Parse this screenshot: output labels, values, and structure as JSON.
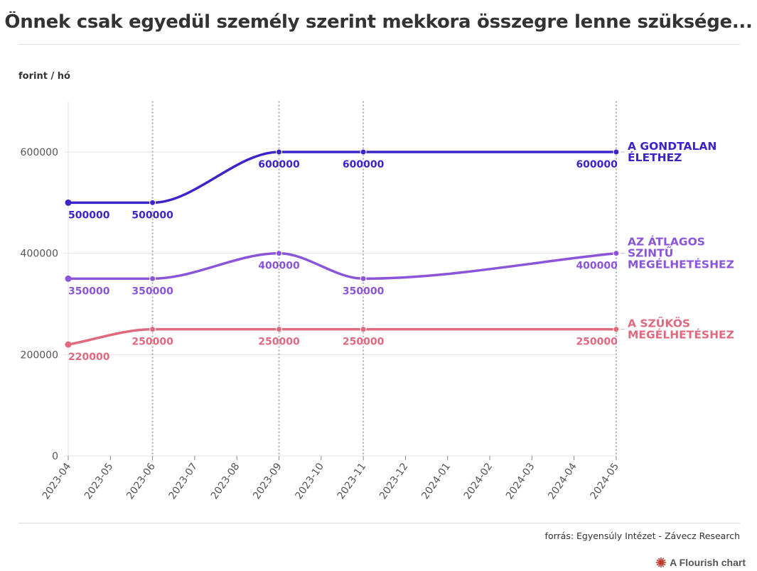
{
  "header": {
    "title": "Önnek csak egyedül személy szerint mekkora összegre lenne szüksége..."
  },
  "footer": {
    "source": "forrás: Egyensúly Intézet - Závecz Research",
    "credit": "A Flourish chart"
  },
  "colors": {
    "gondtalan": "#3b25c9",
    "atlagos": "#8a55d8",
    "szukos": "#e0697f",
    "grid": "#e4e4e4",
    "vline": "#aaaaaa",
    "axis": "#555555",
    "flourish_logo": "#c0392b"
  },
  "icons": {
    "flourish_logo": "flourish-burst-icon"
  },
  "chart_data": {
    "type": "line",
    "ylabel": "forint / hó",
    "xlabel": "",
    "ylim": [
      0,
      700000
    ],
    "yticks": [
      0,
      200000,
      400000,
      600000
    ],
    "ytick_labels": [
      "0",
      "200000",
      "400000",
      "600000"
    ],
    "x_ticks": [
      "2023-04",
      "2023-05",
      "2023-06",
      "2023-07",
      "2023-08",
      "2023-09",
      "2023-10",
      "2023-11",
      "2023-12",
      "2024-01",
      "2024-02",
      "2024-03",
      "2024-04",
      "2024-05"
    ],
    "highlight_dates": [
      "2023-06",
      "2023-09",
      "2023-11",
      "2024-05"
    ],
    "grid": true,
    "legend": "inline-right",
    "series": [
      {
        "name": "A GONDTALAN ÉLETHEZ",
        "label_lines": [
          "A GONDTALAN",
          "ÉLETHEZ"
        ],
        "color_key": "gondtalan",
        "x": [
          "2023-04",
          "2023-06",
          "2023-09",
          "2023-11",
          "2024-05"
        ],
        "values": [
          500000,
          500000,
          600000,
          600000,
          600000
        ],
        "value_labels": [
          "500000",
          "500000",
          "600000",
          "600000",
          "600000"
        ]
      },
      {
        "name": "AZ ÁTLAGOS SZINTŰ MEGÉLHETÉSHEZ",
        "label_lines": [
          "AZ ÁTLAGOS",
          "SZINTŰ",
          "MEGÉLHETÉSHEZ"
        ],
        "color_key": "atlagos",
        "x": [
          "2023-04",
          "2023-06",
          "2023-09",
          "2023-11",
          "2024-05"
        ],
        "values": [
          350000,
          350000,
          400000,
          350000,
          400000
        ],
        "value_labels": [
          "350000",
          "350000",
          "400000",
          "350000",
          "400000"
        ]
      },
      {
        "name": "A SZŰKÖS MEGÉLHETÉSHEZ",
        "label_lines": [
          "A SZŰKÖS",
          "MEGÉLHETÉSHEZ"
        ],
        "color_key": "szukos",
        "x": [
          "2023-04",
          "2023-06",
          "2023-09",
          "2023-11",
          "2024-05"
        ],
        "values": [
          220000,
          250000,
          250000,
          250000,
          250000
        ],
        "value_labels": [
          "220000",
          "250000",
          "250000",
          "250000",
          "250000"
        ]
      }
    ]
  }
}
